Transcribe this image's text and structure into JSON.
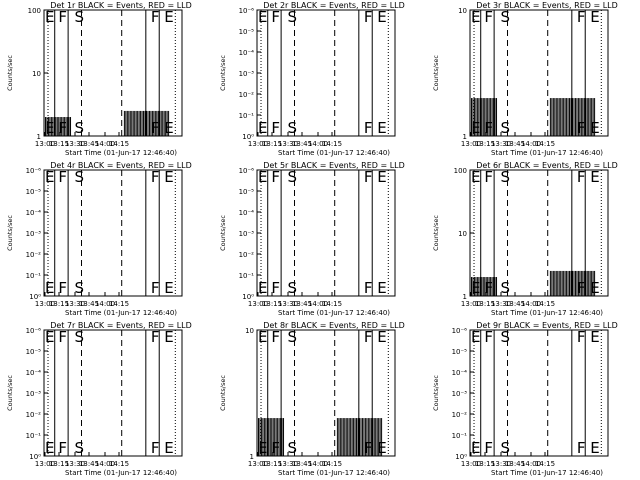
{
  "figure": {
    "x_tick_labels": [
      "13:00",
      "13:15",
      "13:30",
      "13:45",
      "14:00",
      "14:15"
    ],
    "x_axis_label": "Start Time (01-Jun-17 12:46:40)",
    "y_axis_label": "Counts/sec"
  },
  "chart_data": [
    {
      "type": "bar",
      "title": "Det 1r BLACK = Events, RED = LLD",
      "yscale": "log",
      "ylim": [
        1,
        100
      ],
      "xlim_min": [
        0,
        103
      ],
      "y_ticks": [
        "100",
        "10",
        "1"
      ],
      "event_labels": [
        {
          "text": "E",
          "t": 0
        },
        {
          "text": "F",
          "t": 10
        },
        {
          "text": "S",
          "t": 22
        },
        {
          "text": "F",
          "t": 79
        },
        {
          "text": "E",
          "t": 89
        }
      ],
      "solid_lines_min": [
        8,
        18,
        76,
        86
      ],
      "dashed_lines_min": [
        28,
        58
      ],
      "dotted_lines_min": [
        3,
        98
      ],
      "bursts": [
        {
          "start_min": 0,
          "end_min": 20,
          "level": 2
        },
        {
          "start_min": 60,
          "end_min": 94,
          "level": 2.5
        }
      ]
    },
    {
      "type": "bar",
      "title": "Det 2r BLACK = Events, RED = LLD",
      "yscale": "log",
      "ylim": [
        1,
        1e-06
      ],
      "xlim_min": [
        0,
        103
      ],
      "y_ticks": [
        "10⁻⁶",
        "10⁻⁵",
        "10⁻⁴",
        "10⁻³",
        "10⁻²",
        "10⁻¹",
        "10⁰"
      ],
      "event_labels": [
        {
          "text": "E",
          "t": 0
        },
        {
          "text": "F",
          "t": 10
        },
        {
          "text": "S",
          "t": 22
        },
        {
          "text": "F",
          "t": 79
        },
        {
          "text": "E",
          "t": 89
        }
      ],
      "solid_lines_min": [
        8,
        18,
        76,
        86
      ],
      "dashed_lines_min": [
        28,
        58
      ],
      "dotted_lines_min": [
        3,
        98
      ],
      "bursts": []
    },
    {
      "type": "bar",
      "title": "Det 3r BLACK = Events, RED = LLD",
      "yscale": "log",
      "ylim": [
        1,
        10
      ],
      "xlim_min": [
        0,
        103
      ],
      "y_ticks": [
        "10",
        "1"
      ],
      "event_labels": [
        {
          "text": "E",
          "t": 0
        },
        {
          "text": "F",
          "t": 10
        },
        {
          "text": "S",
          "t": 22
        },
        {
          "text": "F",
          "t": 79
        },
        {
          "text": "E",
          "t": 89
        }
      ],
      "solid_lines_min": [
        8,
        18,
        76,
        86
      ],
      "dashed_lines_min": [
        28,
        58
      ],
      "dotted_lines_min": [
        3,
        98
      ],
      "bursts": [
        {
          "start_min": 0,
          "end_min": 20,
          "level": 2
        },
        {
          "start_min": 60,
          "end_min": 94,
          "level": 2
        }
      ]
    },
    {
      "type": "bar",
      "title": "Det 4r BLACK = Events, RED = LLD",
      "yscale": "log",
      "ylim": [
        1,
        1e-06
      ],
      "xlim_min": [
        0,
        103
      ],
      "y_ticks": [
        "10⁻⁶",
        "10⁻⁵",
        "10⁻⁴",
        "10⁻³",
        "10⁻²",
        "10⁻¹",
        "10⁰"
      ],
      "event_labels": [
        {
          "text": "E",
          "t": 0
        },
        {
          "text": "F",
          "t": 10
        },
        {
          "text": "S",
          "t": 22
        },
        {
          "text": "F",
          "t": 79
        },
        {
          "text": "E",
          "t": 89
        }
      ],
      "solid_lines_min": [
        8,
        18,
        76,
        86
      ],
      "dashed_lines_min": [
        28,
        58
      ],
      "dotted_lines_min": [
        3,
        98
      ],
      "bursts": []
    },
    {
      "type": "bar",
      "title": "Det 5r BLACK = Events, RED = LLD",
      "yscale": "log",
      "ylim": [
        1,
        1e-06
      ],
      "xlim_min": [
        0,
        103
      ],
      "y_ticks": [
        "10⁻⁶",
        "10⁻⁵",
        "10⁻⁴",
        "10⁻³",
        "10⁻²",
        "10⁻¹",
        "10⁰"
      ],
      "event_labels": [
        {
          "text": "E",
          "t": 0
        },
        {
          "text": "F",
          "t": 10
        },
        {
          "text": "S",
          "t": 22
        },
        {
          "text": "F",
          "t": 79
        },
        {
          "text": "E",
          "t": 89
        }
      ],
      "solid_lines_min": [
        8,
        18,
        76,
        86
      ],
      "dashed_lines_min": [
        28,
        58
      ],
      "dotted_lines_min": [
        3,
        98
      ],
      "bursts": []
    },
    {
      "type": "bar",
      "title": "Det 6r BLACK = Events, RED = LLD",
      "yscale": "log",
      "ylim": [
        1,
        100
      ],
      "xlim_min": [
        0,
        103
      ],
      "y_ticks": [
        "100",
        "10",
        "1"
      ],
      "event_labels": [
        {
          "text": "E",
          "t": 0
        },
        {
          "text": "F",
          "t": 10
        },
        {
          "text": "S",
          "t": 22
        },
        {
          "text": "F",
          "t": 79
        },
        {
          "text": "E",
          "t": 89
        }
      ],
      "solid_lines_min": [
        8,
        18,
        76,
        86
      ],
      "dashed_lines_min": [
        28,
        58
      ],
      "dotted_lines_min": [
        3,
        98
      ],
      "bursts": [
        {
          "start_min": 0,
          "end_min": 20,
          "level": 2
        },
        {
          "start_min": 60,
          "end_min": 94,
          "level": 2.5
        }
      ]
    },
    {
      "type": "bar",
      "title": "Det 7r BLACK = Events, RED = LLD",
      "yscale": "log",
      "ylim": [
        1,
        1e-06
      ],
      "xlim_min": [
        0,
        103
      ],
      "y_ticks": [
        "10⁻⁶",
        "10⁻⁵",
        "10⁻⁴",
        "10⁻³",
        "10⁻²",
        "10⁻¹",
        "10⁰"
      ],
      "event_labels": [
        {
          "text": "E",
          "t": 0
        },
        {
          "text": "F",
          "t": 10
        },
        {
          "text": "S",
          "t": 22
        },
        {
          "text": "F",
          "t": 79
        },
        {
          "text": "E",
          "t": 89
        }
      ],
      "solid_lines_min": [
        8,
        18,
        76,
        86
      ],
      "dashed_lines_min": [
        28,
        58
      ],
      "dotted_lines_min": [
        3,
        98
      ],
      "bursts": []
    },
    {
      "type": "bar",
      "title": "Det 8r BLACK = Events, RED = LLD",
      "yscale": "log",
      "ylim": [
        1,
        10
      ],
      "xlim_min": [
        0,
        103
      ],
      "y_ticks": [
        "10",
        "1"
      ],
      "event_labels": [
        {
          "text": "E",
          "t": 0
        },
        {
          "text": "F",
          "t": 10
        },
        {
          "text": "S",
          "t": 22
        },
        {
          "text": "F",
          "t": 79
        },
        {
          "text": "E",
          "t": 89
        }
      ],
      "solid_lines_min": [
        8,
        18,
        76,
        86
      ],
      "dashed_lines_min": [
        28,
        58
      ],
      "dotted_lines_min": [
        3,
        98
      ],
      "bursts": [
        {
          "start_min": 0,
          "end_min": 20,
          "level": 2
        },
        {
          "start_min": 60,
          "end_min": 94,
          "level": 2
        }
      ]
    },
    {
      "type": "bar",
      "title": "Det 9r BLACK = Events, RED = LLD",
      "yscale": "log",
      "ylim": [
        1,
        1e-06
      ],
      "xlim_min": [
        0,
        103
      ],
      "y_ticks": [
        "10⁻⁶",
        "10⁻⁵",
        "10⁻⁴",
        "10⁻³",
        "10⁻²",
        "10⁻¹",
        "10⁰"
      ],
      "event_labels": [
        {
          "text": "E",
          "t": 0
        },
        {
          "text": "F",
          "t": 10
        },
        {
          "text": "S",
          "t": 22
        },
        {
          "text": "F",
          "t": 79
        },
        {
          "text": "E",
          "t": 89
        }
      ],
      "solid_lines_min": [
        8,
        18,
        76,
        86
      ],
      "dashed_lines_min": [
        28,
        58
      ],
      "dotted_lines_min": [
        3,
        98
      ],
      "bursts": []
    }
  ]
}
